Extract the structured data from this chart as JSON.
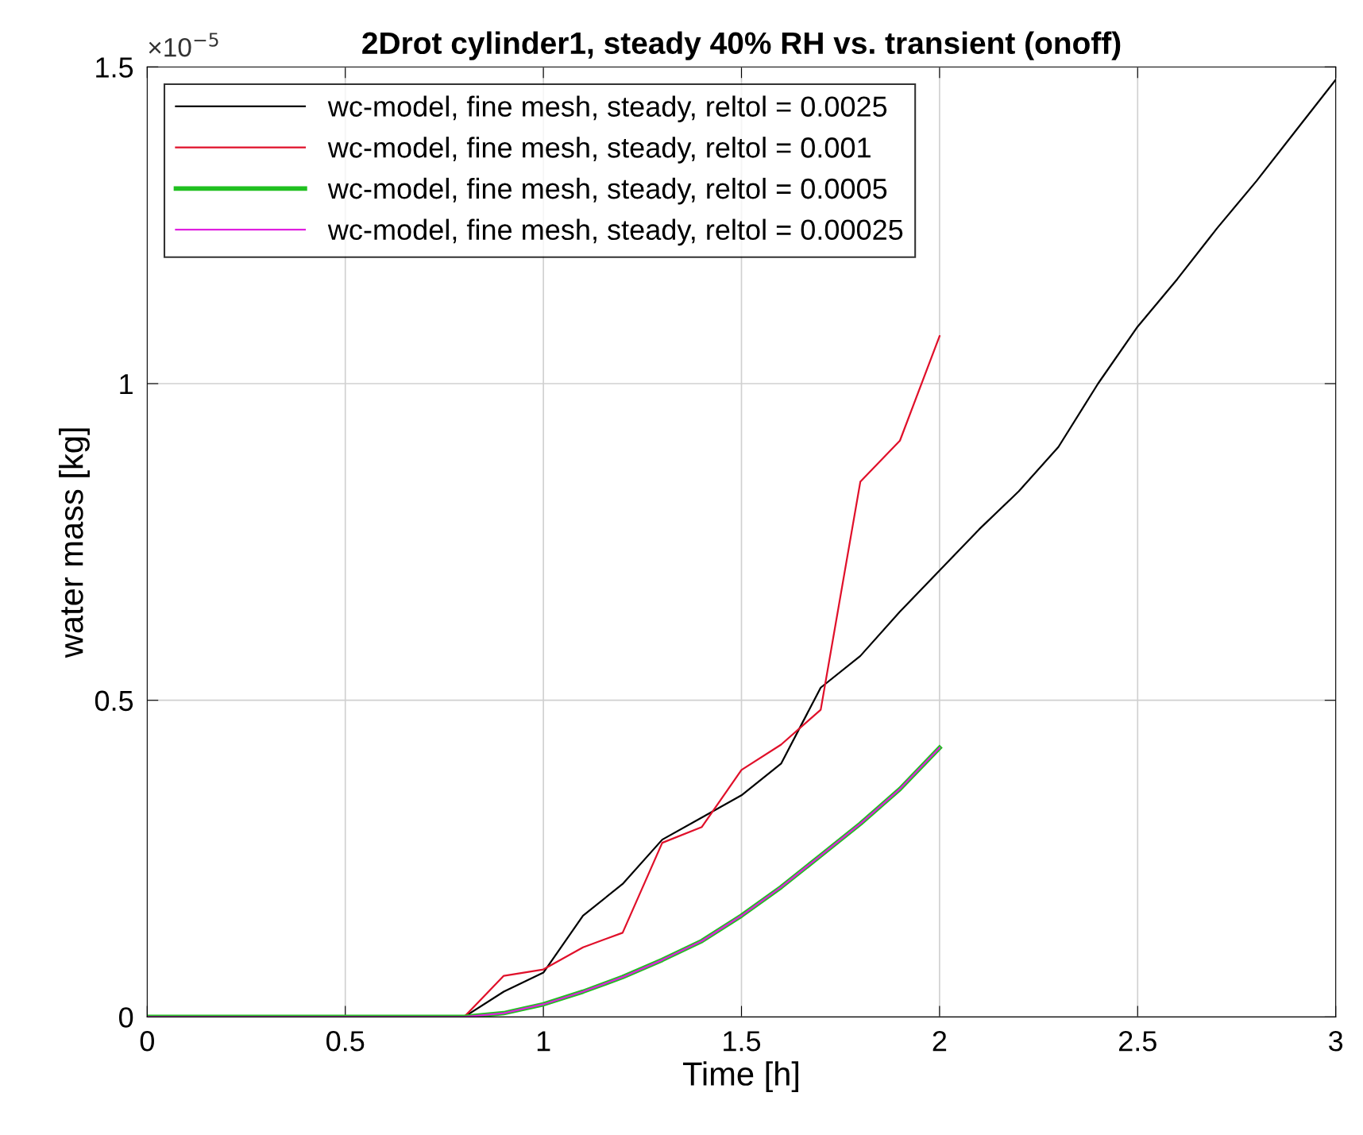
{
  "chart_data": {
    "type": "line",
    "title": "2Drot cylinder1, steady 40% RH vs. transient (onoff)",
    "xlabel": "Time [h]",
    "ylabel": "water mass [kg]",
    "annotations": [
      "×10$^{−5}$"
    ],
    "x": [
      0,
      0.8,
      0.9,
      1.0,
      1.1,
      1.2,
      1.3,
      1.4,
      1.5,
      1.6,
      1.7,
      1.8,
      1.9,
      2.0,
      2.1,
      2.2,
      2.3,
      2.4,
      2.5,
      2.6,
      2.7,
      2.8,
      2.9,
      3.0
    ],
    "series": [
      {
        "name": "wc-model, fine mesh, steady, reltol = 0.0025",
        "color": "#000000",
        "values": [
          0,
          0,
          0.04,
          0.07,
          0.16,
          0.21,
          0.28,
          0.315,
          0.35,
          0.4,
          0.52,
          0.57,
          0.64,
          0.705,
          0.77,
          0.83,
          0.9,
          1.0,
          1.09,
          1.165,
          1.245,
          1.32,
          1.4,
          1.48
        ]
      },
      {
        "name": "wc-model, fine mesh, steady, reltol = 0.001",
        "color": "#e0102a",
        "values": [
          0,
          0,
          0.065,
          0.075,
          0.11,
          0.133,
          0.275,
          0.3,
          0.39,
          0.43,
          0.485,
          0.845,
          0.91,
          1.075,
          null,
          null,
          null,
          null,
          null,
          null,
          null,
          null,
          null,
          null
        ]
      },
      {
        "name": "wc-model, fine mesh, steady, reltol = 0.0005",
        "color": "#20c020",
        "values": [
          0,
          0,
          0.006,
          0.02,
          0.04,
          0.063,
          0.09,
          0.12,
          0.16,
          0.205,
          0.255,
          0.305,
          0.36,
          0.425,
          null,
          null,
          null,
          null,
          null,
          null,
          null,
          null,
          null,
          null
        ]
      },
      {
        "name": "wc-model, fine mesh, steady, reltol = 0.00025",
        "color": "#e020e0",
        "values": [
          0,
          0,
          0.006,
          0.02,
          0.04,
          0.063,
          0.09,
          0.12,
          0.16,
          0.205,
          0.255,
          0.305,
          0.36,
          0.425,
          null,
          null,
          null,
          null,
          null,
          null,
          null,
          null,
          null,
          null
        ]
      }
    ],
    "xlim": [
      0,
      3
    ],
    "xticks": [
      0,
      0.5,
      1,
      1.5,
      2,
      2.5,
      3
    ],
    "ylim": [
      0,
      1.5
    ],
    "yticks": [
      0,
      0.5,
      1,
      1.5
    ],
    "grid": true,
    "legend": "top left",
    "line_style": "solid",
    "marker": "none"
  }
}
